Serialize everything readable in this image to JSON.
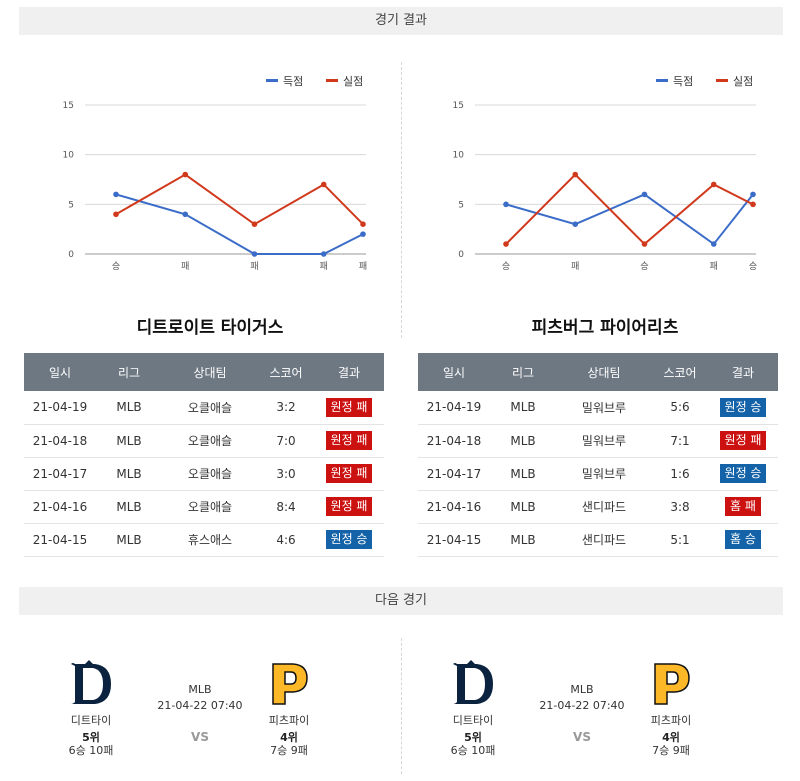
{
  "sections": {
    "results_title": "경기 결과",
    "next_title": "다음 경기"
  },
  "legend": {
    "scored": "득점",
    "allowed": "실점"
  },
  "colors": {
    "scored": "#3a6cc8",
    "allowed": "#d0391c",
    "loss_badge": "#cc1111",
    "win_badge": "#1462a8",
    "table_header": "#6e7882"
  },
  "chart_data": [
    {
      "type": "line",
      "categories": [
        "승",
        "패",
        "패",
        "패",
        "패"
      ],
      "series": [
        {
          "name": "득점",
          "values": [
            6,
            4,
            0,
            0,
            2
          ]
        },
        {
          "name": "실점",
          "values": [
            4,
            8,
            3,
            7,
            3
          ]
        }
      ],
      "ylim": [
        0,
        15
      ],
      "yticks": [
        0,
        5,
        10,
        15
      ],
      "grid": true,
      "legend_position": "top-right"
    },
    {
      "type": "line",
      "categories": [
        "승",
        "패",
        "승",
        "패",
        "승"
      ],
      "series": [
        {
          "name": "득점",
          "values": [
            5,
            3,
            6,
            1,
            6
          ]
        },
        {
          "name": "실점",
          "values": [
            1,
            8,
            1,
            7,
            5
          ]
        }
      ],
      "ylim": [
        0,
        15
      ],
      "yticks": [
        0,
        5,
        10,
        15
      ],
      "grid": true,
      "legend_position": "top-right"
    }
  ],
  "teams": {
    "left_title": "디트로이트 타이거스",
    "right_title": "피츠버그 파이어리츠"
  },
  "table_headers": [
    "일시",
    "리그",
    "상대팀",
    "스코어",
    "결과"
  ],
  "left_results": [
    {
      "date": "21-04-19",
      "league": "MLB",
      "opponent": "오클애슬",
      "score": "3:2",
      "result": "원정 패",
      "type": "loss"
    },
    {
      "date": "21-04-18",
      "league": "MLB",
      "opponent": "오클애슬",
      "score": "7:0",
      "result": "원정 패",
      "type": "loss"
    },
    {
      "date": "21-04-17",
      "league": "MLB",
      "opponent": "오클애슬",
      "score": "3:0",
      "result": "원정 패",
      "type": "loss"
    },
    {
      "date": "21-04-16",
      "league": "MLB",
      "opponent": "오클애슬",
      "score": "8:4",
      "result": "원정 패",
      "type": "loss"
    },
    {
      "date": "21-04-15",
      "league": "MLB",
      "opponent": "휴스애스",
      "score": "4:6",
      "result": "원정 승",
      "type": "win"
    }
  ],
  "right_results": [
    {
      "date": "21-04-19",
      "league": "MLB",
      "opponent": "밀워브루",
      "score": "5:6",
      "result": "원정 승",
      "type": "win"
    },
    {
      "date": "21-04-18",
      "league": "MLB",
      "opponent": "밀워브루",
      "score": "7:1",
      "result": "원정 패",
      "type": "loss"
    },
    {
      "date": "21-04-17",
      "league": "MLB",
      "opponent": "밀워브루",
      "score": "1:6",
      "result": "원정 승",
      "type": "win"
    },
    {
      "date": "21-04-16",
      "league": "MLB",
      "opponent": "샌디파드",
      "score": "3:8",
      "result": "홈 패",
      "type": "loss"
    },
    {
      "date": "21-04-15",
      "league": "MLB",
      "opponent": "샌디파드",
      "score": "5:1",
      "result": "홈 승",
      "type": "win"
    }
  ],
  "next_games": [
    {
      "home": {
        "name": "디트타이",
        "rank": "5위",
        "record": "6승 10패",
        "logo": "detroit-d-logo",
        "logo_color": "#0c2340"
      },
      "away": {
        "name": "피츠파이",
        "rank": "4위",
        "record": "7승 9패",
        "logo": "pittsburgh-p-logo",
        "logo_color": "#fdb827"
      },
      "league": "MLB",
      "datetime": "21-04-22 07:40",
      "vs": "VS"
    },
    {
      "home": {
        "name": "디트타이",
        "rank": "5위",
        "record": "6승 10패",
        "logo": "detroit-d-logo",
        "logo_color": "#0c2340"
      },
      "away": {
        "name": "피츠파이",
        "rank": "4위",
        "record": "7승 9패",
        "logo": "pittsburgh-p-logo",
        "logo_color": "#fdb827"
      },
      "league": "MLB",
      "datetime": "21-04-22 07:40",
      "vs": "VS"
    }
  ]
}
